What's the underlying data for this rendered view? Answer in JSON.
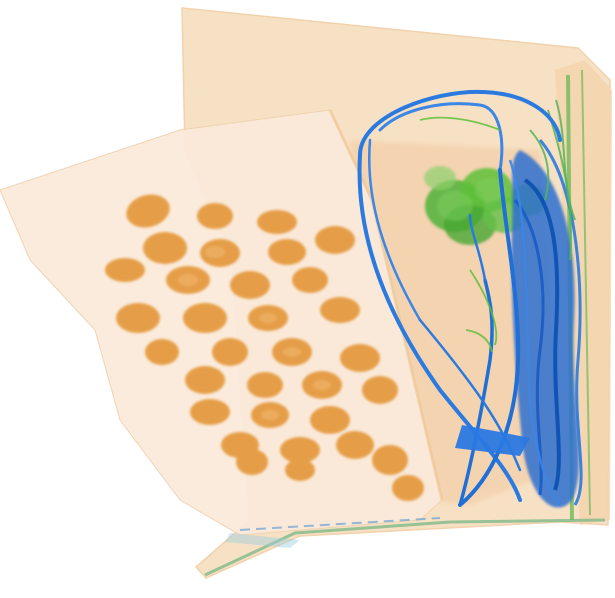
{
  "image": {
    "subject": "xray-scan-of-package",
    "palette": {
      "background": "#ffffff",
      "organic": "#e59a3a",
      "organic_light": "#f6dcb8",
      "organic_pale": "#fbece0",
      "mixed": "#5fbf3a",
      "mixed_light": "#9bd27a",
      "metal": "#1f6fd6",
      "metal_dark": "#0b4fb0"
    },
    "objects": [
      "flat-cardboard-package",
      "pouch-of-nuts",
      "coiled-cable-bundle",
      "cable-loop",
      "small-blue-tag"
    ]
  }
}
